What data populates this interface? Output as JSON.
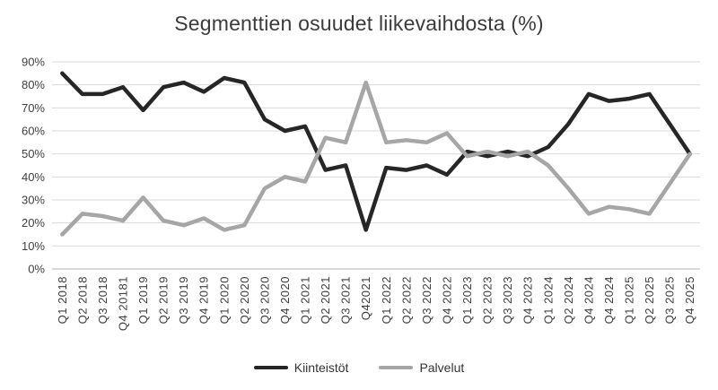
{
  "chart_data": {
    "type": "line",
    "title": "Segmenttien osuudet liikevaihdosta (%)",
    "categories": [
      "Q1 2018",
      "Q2 2018",
      "Q3 2018",
      "Q4 20181",
      "Q1 2019",
      "Q2 2019",
      "Q3 2019",
      "Q4 2019",
      "Q1 2020",
      "Q2 2020",
      "Q3 2020",
      "Q4 2020",
      "Q1 2021",
      "Q2 2021",
      "Q3 2021",
      "Q42021",
      "Q1 2022",
      "Q2 2022",
      "Q3 2022",
      "Q4 2022",
      "Q1 2023",
      "Q2 2023",
      "Q3 2023",
      "Q4 2023",
      "Q1 2024",
      "Q2 2024",
      "Q4 2024",
      "Q4 2024",
      "Q1 2025",
      "Q2 2025",
      "Q3 2025",
      "Q4 2025"
    ],
    "series": [
      {
        "name": "Kiinteistöt",
        "color": "#262626",
        "stroke_width": 4.5,
        "values": [
          85,
          76,
          76,
          79,
          69,
          79,
          81,
          77,
          83,
          81,
          65,
          60,
          62,
          43,
          45,
          17,
          44,
          43,
          45,
          41,
          51,
          49,
          51,
          49,
          53,
          63,
          76,
          73,
          74,
          76,
          63,
          50
        ]
      },
      {
        "name": "Palvelut",
        "color": "#a6a6a6",
        "stroke_width": 4.5,
        "values": [
          15,
          24,
          23,
          21,
          31,
          21,
          19,
          22,
          17,
          19,
          35,
          40,
          38,
          57,
          55,
          81,
          55,
          56,
          55,
          59,
          49,
          51,
          49,
          51,
          45,
          35,
          24,
          27,
          26,
          24,
          37,
          50
        ]
      }
    ],
    "xlabel": "",
    "ylabel": "",
    "ylim": [
      0,
      90
    ],
    "ytick_step": 10,
    "ytick_labels": [
      "0%",
      "10%",
      "20%",
      "30%",
      "40%",
      "50%",
      "60%",
      "70%",
      "80%",
      "90%"
    ],
    "grid": true,
    "legend_position": "bottom",
    "x_tick_rotation": -90
  },
  "colors": {
    "gridline": "#d9d9d9",
    "axis": "#c3c3c3",
    "tick_text": "#404040",
    "title_text": "#3b3b3b",
    "background": "#ffffff"
  }
}
